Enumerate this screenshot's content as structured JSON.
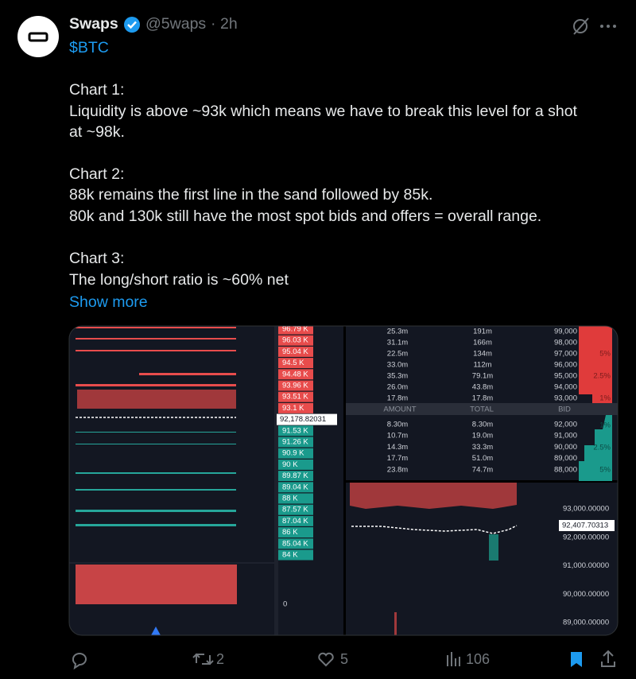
{
  "header": {
    "name": "Swaps",
    "handle": "@5waps",
    "separator": "·",
    "time": "2h"
  },
  "body": {
    "cashtag": "$BTC",
    "lines": [
      "Chart 1:",
      "Liquidity is above ~93k which means we have to break this level for a shot",
      "at ~98k.",
      "Chart 2:",
      "88k remains the first line in the sand followed by 85k.",
      "80k and 130k still have the most spot bids and offers = overall range.",
      "Chart 3:",
      "The long/short ratio is ~60% net"
    ],
    "show_more": "Show more"
  },
  "media": {
    "liquidity_chart": {
      "ask_levels": [
        "96.79 K",
        "96.03 K",
        "95.04 K",
        "94.5 K",
        "94.48 K",
        "93.96 K",
        "93.51 K",
        "93.1 K"
      ],
      "current_price": "92,178.82031",
      "bid_levels": [
        "91.53 K",
        "91.26 K",
        "90.9 K",
        "90 K",
        "89.87 K",
        "89.04 K",
        "88 K",
        "87.57 K",
        "87.04 K",
        "86 K",
        "85.04 K",
        "84 K"
      ],
      "volume_zero": "0"
    },
    "order_book": {
      "asks": [
        [
          "25.3m",
          "191m",
          "99,000"
        ],
        [
          "31.1m",
          "166m",
          "98,000"
        ],
        [
          "22.5m",
          "134m",
          "97,000"
        ],
        [
          "33.0m",
          "112m",
          "96,000"
        ],
        [
          "35.3m",
          "79.1m",
          "95,000"
        ],
        [
          "26.0m",
          "43.8m",
          "94,000"
        ],
        [
          "17.8m",
          "17.8m",
          "93,000"
        ]
      ],
      "ask_depth_labels": [
        "5%",
        "2.5%",
        "1%"
      ],
      "columns": [
        "AMOUNT",
        "TOTAL",
        "BID"
      ],
      "bids": [
        [
          "8.30m",
          "8.30m",
          "92,000"
        ],
        [
          "10.7m",
          "19.0m",
          "91,000"
        ],
        [
          "14.3m",
          "33.3m",
          "90,000"
        ],
        [
          "17.7m",
          "51.0m",
          "89,000"
        ],
        [
          "23.8m",
          "74.7m",
          "88,000"
        ]
      ],
      "bid_depth_labels": [
        "1%",
        "2.5%",
        "5%"
      ]
    },
    "price_chart": {
      "axis_labels": [
        "93,000.00000",
        "92,000.00000",
        "91,000.00000",
        "90,000.00000",
        "89,000.00000"
      ],
      "current_price": "92,407.70313"
    }
  },
  "actions": {
    "retweets": 2,
    "likes": 5,
    "views": 106
  }
}
